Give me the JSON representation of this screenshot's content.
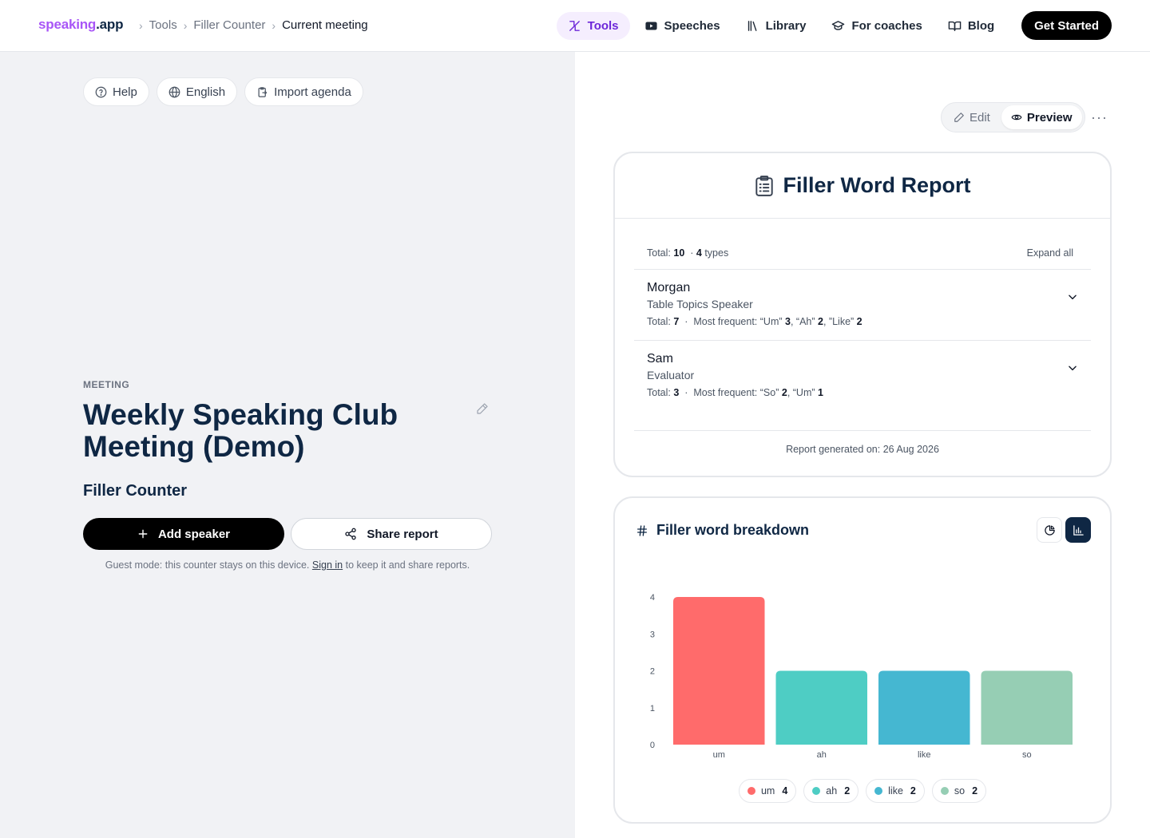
{
  "header": {
    "brand_part1": "speaking",
    "brand_part2": ".app",
    "breadcrumbs": [
      "Tools",
      "Filler Counter",
      "Current meeting"
    ],
    "nav": [
      "Tools",
      "Speeches",
      "Library",
      "For coaches",
      "Blog"
    ],
    "cta": "Get Started"
  },
  "left": {
    "pills": [
      "Help",
      "English",
      "Import agenda"
    ],
    "meeting_label": "MEETING",
    "meeting_title": "Weekly Speaking Club Meeting (Demo)",
    "tool_name": "Filler Counter",
    "add_speaker": "Add speaker",
    "share_report": "Share report",
    "guest_note_before": "Guest mode: this counter stays on this device.",
    "guest_note_link": "Sign in",
    "guest_note_after": "to keep it and share reports."
  },
  "right": {
    "toggle_edit": "Edit",
    "toggle_preview": "Preview",
    "more": "···",
    "report": {
      "title": "Filler Word Report",
      "total_label": "Total:",
      "total_value": "10",
      "types_value": "4",
      "types_label": "types",
      "expand_all": "Expand all",
      "speakers": [
        {
          "name": "Morgan",
          "role": "Table Topics Speaker",
          "total": "7",
          "most_frequent": [
            [
              "“Um”",
              "3"
            ],
            [
              "“Ah”",
              "2"
            ],
            [
              "”Like”",
              "2"
            ]
          ]
        },
        {
          "name": "Sam",
          "role": "Evaluator",
          "total": "3",
          "most_frequent": [
            [
              "“So”",
              "2"
            ],
            [
              "“Um”",
              "1"
            ]
          ]
        }
      ],
      "generated": "Report generated on: 26 Aug 2026"
    },
    "breakdown_title": "Filler word breakdown"
  },
  "colors": {
    "um": "#ff6b6b",
    "ah": "#4ecdc4",
    "like": "#45b7d1",
    "so": "#96ceb4",
    "navy": "#0f2744",
    "brand": "#a855f7"
  },
  "chart_data": {
    "type": "bar",
    "categories": [
      "um",
      "ah",
      "like",
      "so"
    ],
    "values": [
      4,
      2,
      2,
      2
    ],
    "ylim": [
      0,
      4
    ],
    "yticks": [
      0,
      1,
      2,
      3,
      4
    ],
    "legend": [
      {
        "label": "um",
        "value": "4"
      },
      {
        "label": "ah",
        "value": "2"
      },
      {
        "label": "like",
        "value": "2"
      },
      {
        "label": "so",
        "value": "2"
      }
    ]
  }
}
